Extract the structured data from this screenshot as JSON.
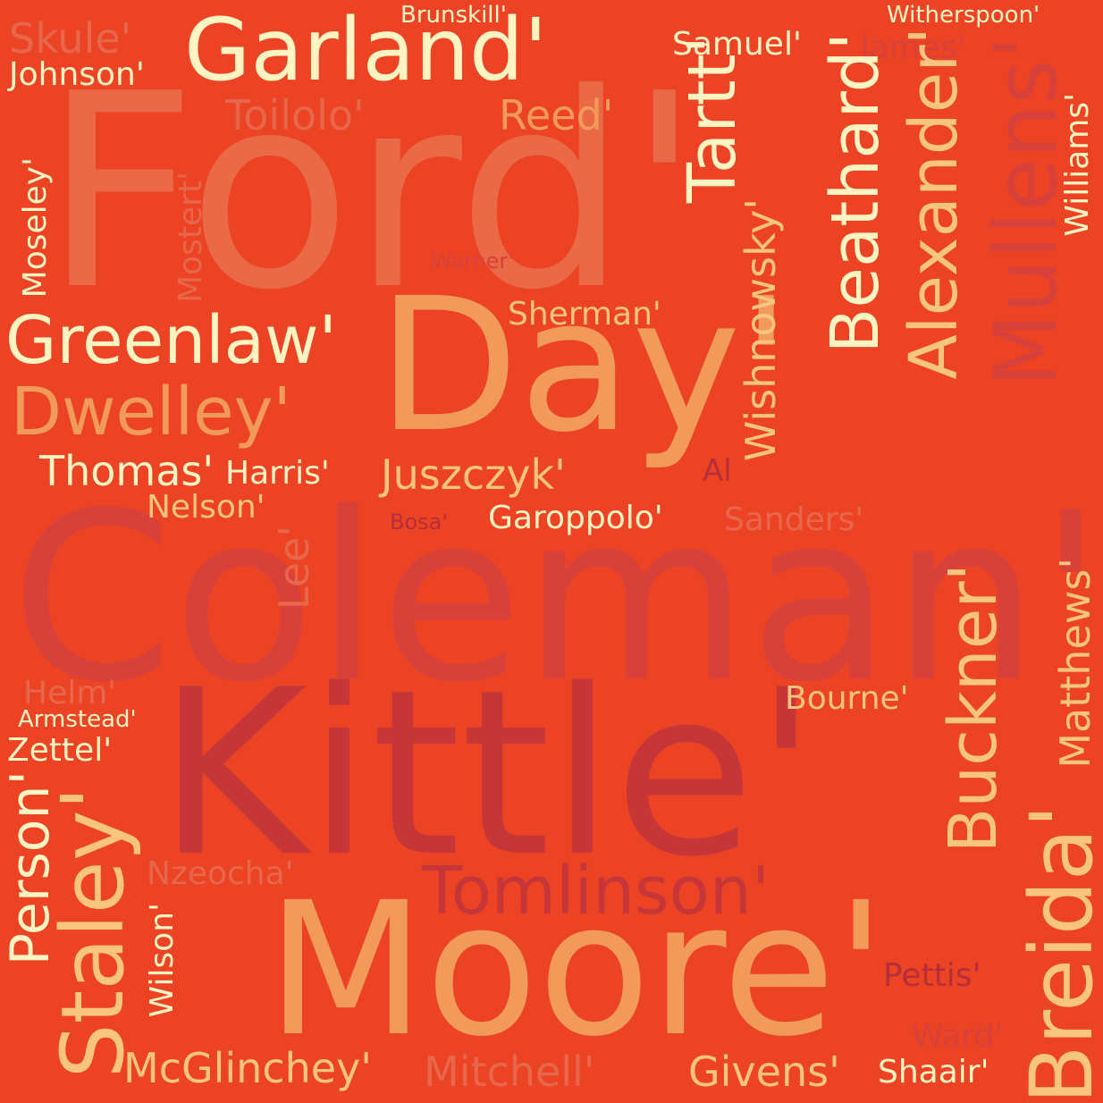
{
  "palette": {
    "background": "#ed4325",
    "cream": "#fff4c2",
    "pale": "#fde8b0",
    "light_orange": "#f8c480",
    "orange": "#f19a5a",
    "salmon": "#ea6a47",
    "coral": "#e8674a",
    "red": "#d8413a",
    "crimson": "#c63537",
    "dark": "#b52e38"
  },
  "words": [
    {
      "id": "ford",
      "text": "Ford'",
      "color": "salmon"
    },
    {
      "id": "coleman",
      "text": "Coleman'",
      "color": "red"
    },
    {
      "id": "kittle",
      "text": "Kittle'",
      "color": "crimson"
    },
    {
      "id": "moore",
      "text": "Moore'",
      "color": "orange"
    },
    {
      "id": "day",
      "text": "Day'",
      "color": "orange"
    },
    {
      "id": "garland",
      "text": "Garland'",
      "color": "cream"
    },
    {
      "id": "greenlaw",
      "text": "Greenlaw'",
      "color": "cream"
    },
    {
      "id": "dwelley",
      "text": "Dwelley'",
      "color": "orange"
    },
    {
      "id": "thomas",
      "text": "Thomas'",
      "color": "cream"
    },
    {
      "id": "harris",
      "text": "Harris'",
      "color": "cream"
    },
    {
      "id": "juszczyk",
      "text": "Juszczyk'",
      "color": "light_orange"
    },
    {
      "id": "nelson",
      "text": "Nelson'",
      "color": "light_orange"
    },
    {
      "id": "garoppolo",
      "text": "Garoppolo'",
      "color": "cream"
    },
    {
      "id": "sanders",
      "text": "Sanders'",
      "color": "coral"
    },
    {
      "id": "bosa",
      "text": "Bosa'",
      "color": "dark"
    },
    {
      "id": "al",
      "text": "Al",
      "color": "dark"
    },
    {
      "id": "skule",
      "text": "Skule'",
      "color": "coral"
    },
    {
      "id": "johnson",
      "text": "Johnson'",
      "color": "cream"
    },
    {
      "id": "brunskill",
      "text": "Brunskill'",
      "color": "cream"
    },
    {
      "id": "samuel",
      "text": "Samuel'",
      "color": "cream"
    },
    {
      "id": "james",
      "text": "James'",
      "color": "red"
    },
    {
      "id": "witherspoon",
      "text": "Witherspoon'",
      "color": "cream"
    },
    {
      "id": "toilolo",
      "text": "Toilolo'",
      "color": "coral"
    },
    {
      "id": "reed",
      "text": "Reed'",
      "color": "orange"
    },
    {
      "id": "sherman",
      "text": "Sherman'",
      "color": "light_orange"
    },
    {
      "id": "warner",
      "text": "Warner'",
      "color": "red"
    },
    {
      "id": "tartt",
      "text": "Tartt'",
      "color": "cream"
    },
    {
      "id": "beathard",
      "text": "Beathard'",
      "color": "cream"
    },
    {
      "id": "alexander",
      "text": "Alexander'",
      "color": "light_orange"
    },
    {
      "id": "mullens",
      "text": "Mullens'",
      "color": "red"
    },
    {
      "id": "williams",
      "text": "Williams'",
      "color": "cream"
    },
    {
      "id": "mostert",
      "text": "Mostert'",
      "color": "coral"
    },
    {
      "id": "moseley",
      "text": "Moseley'",
      "color": "cream"
    },
    {
      "id": "wishnowsky",
      "text": "Wishnowsky'",
      "color": "light_orange"
    },
    {
      "id": "lee",
      "text": "Lee'",
      "color": "coral"
    },
    {
      "id": "buckner",
      "text": "Buckner'",
      "color": "light_orange"
    },
    {
      "id": "matthews",
      "text": "Matthews'",
      "color": "light_orange"
    },
    {
      "id": "breida",
      "text": "Breida'",
      "color": "light_orange"
    },
    {
      "id": "helm",
      "text": "Helm'",
      "color": "coral"
    },
    {
      "id": "armstead",
      "text": "Armstead'",
      "color": "cream"
    },
    {
      "id": "zettel",
      "text": "Zettel'",
      "color": "cream"
    },
    {
      "id": "bourne",
      "text": "Bourne'",
      "color": "light_orange"
    },
    {
      "id": "person",
      "text": "Person'",
      "color": "cream"
    },
    {
      "id": "staley",
      "text": "Staley'",
      "color": "light_orange"
    },
    {
      "id": "nzeocha",
      "text": "Nzeocha'",
      "color": "coral"
    },
    {
      "id": "wilson",
      "text": "Wilson'",
      "color": "cream"
    },
    {
      "id": "tomlinson",
      "text": "Tomlinson'",
      "color": "crimson"
    },
    {
      "id": "pettis",
      "text": "Pettis'",
      "color": "dark"
    },
    {
      "id": "ward",
      "text": "Ward'",
      "color": "red"
    },
    {
      "id": "mcglinchey",
      "text": "McGlinchey'",
      "color": "light_orange"
    },
    {
      "id": "mitchell",
      "text": "Mitchell'",
      "color": "coral"
    },
    {
      "id": "givens",
      "text": "Givens'",
      "color": "light_orange"
    },
    {
      "id": "shaair",
      "text": "Shaair'",
      "color": "cream"
    }
  ]
}
